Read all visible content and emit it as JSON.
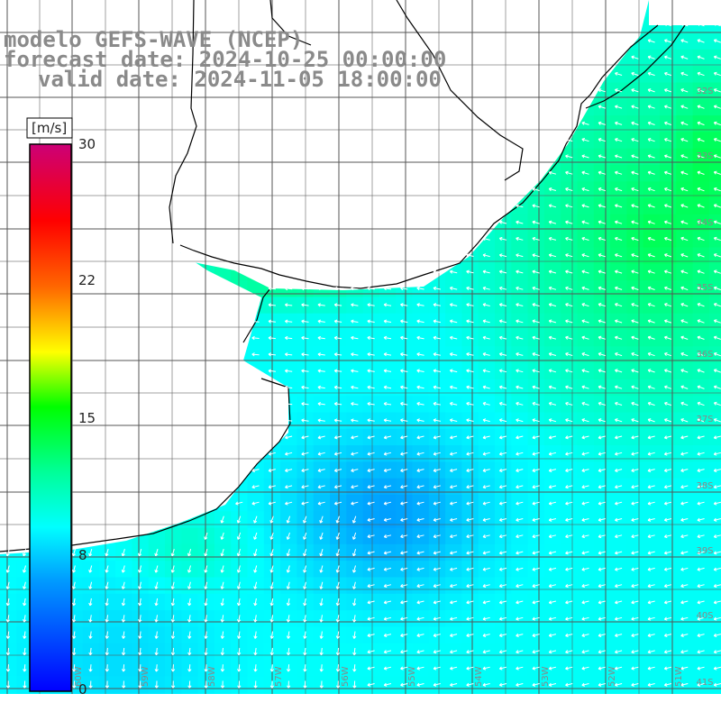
{
  "header": {
    "model": "modelo GEFS-WAVE (NCEP)",
    "forecast": "forecast date: 2024-10-25 00:00:00",
    "valid": "valid date: 2024-11-05 18:00:00"
  },
  "colorbar": {
    "unit": "[m/s]",
    "ticks": [
      "30",
      "22",
      "15",
      "8",
      "0"
    ],
    "colors": [
      "#0000ff",
      "#0099ff",
      "#00ffff",
      "#00ff00",
      "#ffff00",
      "#ff6600",
      "#ff0000",
      "#cc0077"
    ]
  },
  "axes": {
    "lat_labels": [
      "32S",
      "33S",
      "34S",
      "35S",
      "36S",
      "37S",
      "38S",
      "39S",
      "40S",
      "41S"
    ],
    "lon_labels": [
      "60W",
      "59W",
      "58W",
      "57W",
      "56W",
      "55W",
      "54W",
      "53W",
      "52W",
      "51W"
    ]
  },
  "colors": {
    "land": "#ffffff",
    "grid": "#555555",
    "coast": "#000000",
    "arrows": "#ffffff"
  }
}
